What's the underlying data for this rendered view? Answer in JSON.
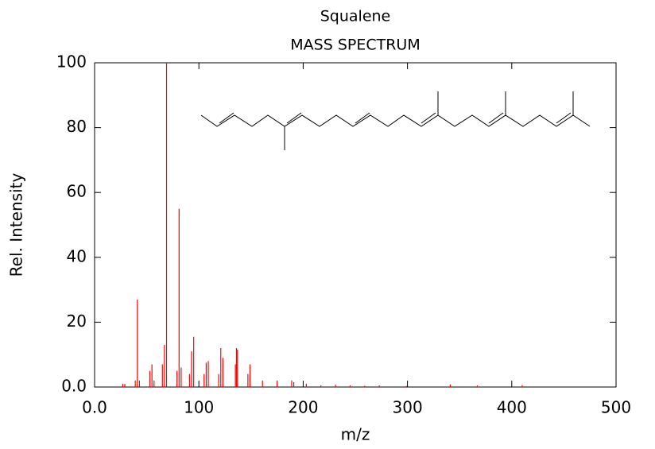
{
  "chart_data": {
    "type": "stem",
    "title": "Squalene",
    "subtitle": "MASS SPECTRUM",
    "x_label": "m/z",
    "y_label": "Rel. Intensity",
    "color": "#ff0000",
    "x": [
      27,
      29,
      39,
      41,
      43,
      53,
      55,
      57,
      65,
      67,
      69,
      79,
      81,
      83,
      91,
      93,
      95,
      105,
      107,
      109,
      119,
      121,
      123,
      135,
      136,
      137,
      147,
      149,
      161,
      175,
      189,
      191,
      203,
      217,
      231,
      245,
      259,
      273,
      299,
      341,
      367,
      410
    ],
    "values": [
      1,
      1,
      2,
      27,
      2,
      5,
      7,
      2,
      7,
      13,
      100,
      5,
      55,
      6,
      4,
      11,
      15.5,
      4,
      7.5,
      8,
      4,
      12,
      9,
      7,
      12,
      11.5,
      4,
      7,
      2,
      2,
      2,
      1.5,
      1,
      0.5,
      0.7,
      0.5,
      0.4,
      0.5,
      0.3,
      0.8,
      0.5,
      0.6
    ],
    "xlim": [
      0,
      500
    ],
    "xticks": [
      {
        "value": 0,
        "label": "0.0"
      },
      100,
      200,
      300,
      400,
      500
    ],
    "ylim": [
      0,
      100
    ],
    "yticks": [
      {
        "value": 0,
        "label": "0.0"
      },
      20,
      40,
      60,
      80,
      100
    ]
  }
}
